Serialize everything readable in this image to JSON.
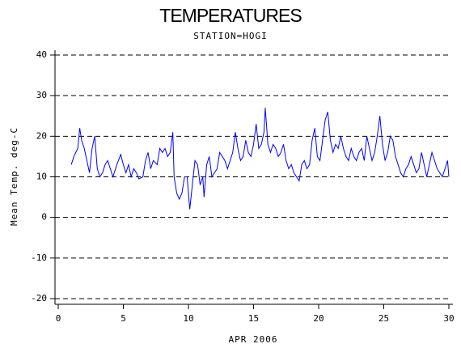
{
  "chart_data": {
    "type": "line",
    "title": "TEMPERATURES",
    "subtitle": "STATION=HOGI",
    "x_label": "APR 2006",
    "y_label": "Mean Temp. deg-C",
    "xlim": [
      0,
      30
    ],
    "xticks": [
      0,
      5,
      10,
      15,
      20,
      25,
      30
    ],
    "ylim": [
      -20,
      40
    ],
    "yticks": [
      -20,
      -10,
      0,
      10,
      20,
      30,
      40
    ],
    "grid": true,
    "series": [
      {
        "name": "Mean Temp",
        "color": "#0000ff",
        "x": [
          1.0,
          1.2,
          1.5,
          1.65,
          1.8,
          2.0,
          2.2,
          2.4,
          2.6,
          2.8,
          3.0,
          3.2,
          3.4,
          3.6,
          3.8,
          4.0,
          4.2,
          4.5,
          4.8,
          5.0,
          5.2,
          5.4,
          5.6,
          5.8,
          6.0,
          6.2,
          6.5,
          6.7,
          6.9,
          7.1,
          7.3,
          7.6,
          7.8,
          8.0,
          8.2,
          8.4,
          8.6,
          8.8,
          8.9,
          9.1,
          9.3,
          9.5,
          9.7,
          9.9,
          10.0,
          10.1,
          10.3,
          10.5,
          10.7,
          10.9,
          11.1,
          11.2,
          11.4,
          11.6,
          11.8,
          12.0,
          12.2,
          12.4,
          12.6,
          12.8,
          13.0,
          13.2,
          13.4,
          13.6,
          13.8,
          14.0,
          14.2,
          14.4,
          14.6,
          14.8,
          15.0,
          15.2,
          15.4,
          15.6,
          15.8,
          15.9,
          16.1,
          16.3,
          16.5,
          16.7,
          16.9,
          17.1,
          17.3,
          17.5,
          17.7,
          17.9,
          18.1,
          18.3,
          18.5,
          18.7,
          18.9,
          19.1,
          19.3,
          19.5,
          19.7,
          19.9,
          20.1,
          20.3,
          20.5,
          20.7,
          20.9,
          21.1,
          21.3,
          21.5,
          21.7,
          21.9,
          22.1,
          22.3,
          22.5,
          22.7,
          22.9,
          23.1,
          23.3,
          23.5,
          23.7,
          23.9,
          24.1,
          24.3,
          24.5,
          24.7,
          24.9,
          25.1,
          25.3,
          25.5,
          25.7,
          25.9,
          26.1,
          26.3,
          26.5,
          26.7,
          26.9,
          27.1,
          27.3,
          27.5,
          27.7,
          27.9,
          28.1,
          28.3,
          28.5,
          28.7,
          28.9,
          29.1,
          29.3,
          29.5,
          29.7,
          29.9,
          30.0
        ],
        "values": [
          13,
          15,
          17,
          22,
          19,
          17,
          14,
          11,
          17,
          20,
          12,
          10,
          11,
          13,
          14,
          12,
          10,
          13,
          15.5,
          13,
          11,
          13,
          10,
          12,
          11,
          9.5,
          10,
          14,
          16,
          12,
          14,
          13,
          17,
          16,
          17,
          15,
          16,
          21,
          10,
          6,
          4.5,
          6,
          10,
          10,
          6,
          2,
          8,
          14,
          13,
          8,
          10,
          5,
          13,
          15,
          10,
          11,
          12,
          16,
          15,
          14,
          12,
          14,
          16,
          21,
          17,
          14,
          15,
          19,
          16,
          15,
          18,
          23,
          17,
          18,
          21,
          27,
          18,
          16,
          18,
          17,
          15,
          16,
          18,
          14,
          12,
          13,
          11,
          10,
          9,
          13,
          14,
          12,
          13,
          19,
          22,
          15,
          14,
          19,
          24,
          26,
          19,
          16,
          18,
          17,
          20,
          17,
          15,
          14,
          17,
          15,
          14,
          16,
          17,
          14,
          20,
          17,
          14,
          16,
          20,
          25,
          18,
          14,
          16,
          20,
          19,
          15,
          13,
          11,
          10,
          12,
          13,
          15,
          13,
          11,
          12,
          16,
          13,
          10,
          13,
          16,
          14,
          12,
          11,
          10,
          12,
          14,
          10
        ]
      }
    ]
  }
}
